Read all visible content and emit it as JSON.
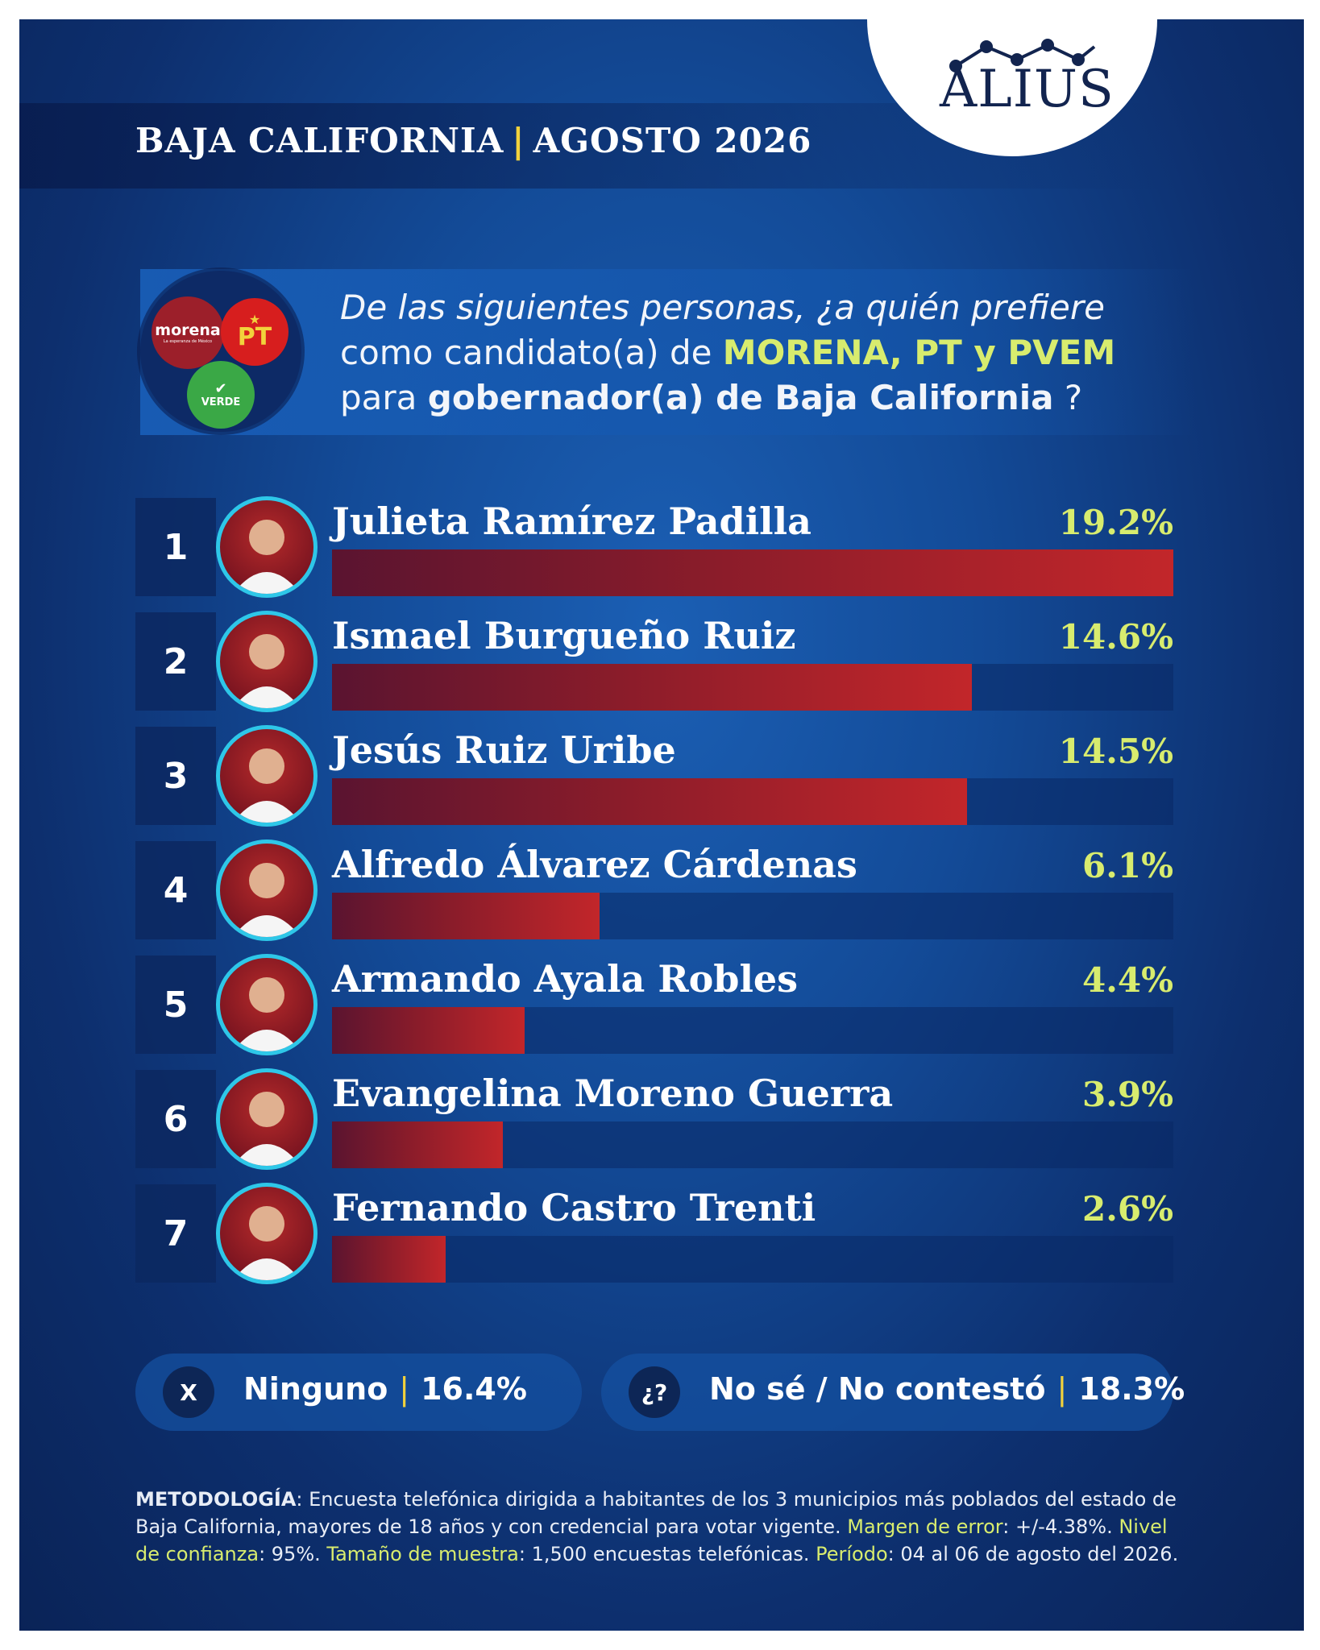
{
  "header": {
    "region": "BAJA CALIFORNIA",
    "separator": "|",
    "period": "AGOSTO 2026"
  },
  "brand": {
    "name": "ALIUS",
    "color": "#12244f"
  },
  "parties": {
    "morena": "morena",
    "morena_tagline": "La esperanza de México",
    "pt": "PT",
    "verde": "VERDE"
  },
  "question": {
    "p1": "De las siguientes personas, ¿a quién prefiere",
    "p2": "como candidato(a) de ",
    "p2_hl": "MORENA, PT y PVEM",
    "p3": "para ",
    "p3_b": "gobernador(a) de Baja California",
    "p3_end": " ?"
  },
  "chart_data": {
    "type": "bar",
    "categories": [
      "Julieta Ramírez Padilla",
      "Ismael Burgueño Ruiz",
      "Jesús Ruiz Uribe",
      "Alfredo Álvarez Cárdenas",
      "Armando Ayala Robles",
      "Evangelina Moreno Guerra",
      "Fernando Castro Trenti"
    ],
    "ranks": [
      "1",
      "2",
      "3",
      "4",
      "5",
      "6",
      "7"
    ],
    "values": [
      19.2,
      14.6,
      14.5,
      6.1,
      4.4,
      3.9,
      2.6
    ],
    "labels": [
      "19.2%",
      "14.6%",
      "14.5%",
      "6.1%",
      "4.4%",
      "3.9%",
      "2.6%"
    ],
    "xlim": [
      0,
      19.2
    ],
    "bar_color": "#c2262a",
    "label_color": "#d8ec6e"
  },
  "other": {
    "ninguno": {
      "icon": "X",
      "label": "Ninguno",
      "sep": "|",
      "value": "16.4%"
    },
    "nose": {
      "icon": "¿?",
      "label": "No sé / No contestó",
      "sep": "|",
      "value": "18.3%"
    }
  },
  "methodology": {
    "k_metodo": "METODOLOGÍA",
    "t_metodo": ": Encuesta telefónica dirigida a habitantes de los 3 municipios más poblados del estado de Baja California, mayores de 18 años y con credencial para votar vigente. ",
    "k_margen": "Margen de error",
    "t_margen": ": +/-4.38%. ",
    "k_nivel": "Nivel de confianza",
    "t_nivel": ": 95%. ",
    "k_tam": "Tamaño de muestra",
    "t_tam": ": 1,500 encuestas telefónicas. ",
    "k_per": "Período",
    "t_per": ": 04 al 06 de agosto del 2026."
  }
}
